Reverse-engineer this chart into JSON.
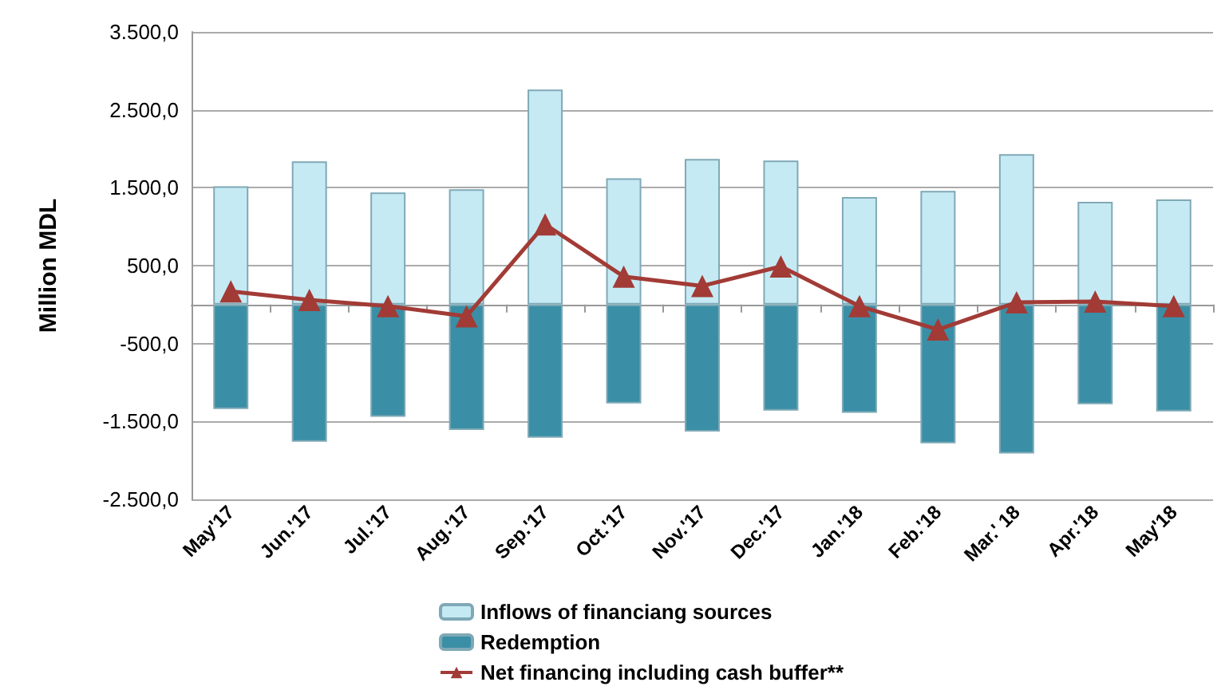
{
  "chart_data": {
    "type": "bar",
    "ylabel": "Million MDL",
    "categories": [
      "May'17",
      "Jun.'17",
      "Jul.'17",
      "Aug.'17",
      "Sep.'17",
      "Oct.'17",
      "Nov.'17",
      "Dec.'17",
      "Jan.'18",
      "Feb.'18",
      "Mar.' 18",
      "Apr.'18",
      "May'18"
    ],
    "series": [
      {
        "name": "Inflows of financiang sources",
        "color": "#c6eaf4",
        "values": [
          1520,
          1840,
          1440,
          1480,
          2760,
          1620,
          1870,
          1850,
          1380,
          1460,
          1930,
          1320,
          1350
        ]
      },
      {
        "name": "Redemption",
        "color": "#3a8fa6",
        "values": [
          -1340,
          -1760,
          -1440,
          -1610,
          -1710,
          -1270,
          -1630,
          -1360,
          -1390,
          -1780,
          -1910,
          -1280,
          -1370
        ]
      },
      {
        "name": "Net financing including cash buffer**",
        "type": "line",
        "color": "#a23b36",
        "marker": "triangle",
        "values": [
          170,
          60,
          -20,
          -150,
          1030,
          360,
          240,
          490,
          -20,
          -320,
          30,
          40,
          -20
        ]
      }
    ],
    "ylim": [
      -2500,
      3500
    ],
    "yticks": [
      {
        "value": -2500,
        "label": "-2.500,0"
      },
      {
        "value": -1500,
        "label": "-1.500,0"
      },
      {
        "value": -500,
        "label": "-500,0"
      },
      {
        "value": 500,
        "label": "500,0"
      },
      {
        "value": 1500,
        "label": "1.500,0"
      },
      {
        "value": 2500,
        "label": "2.500,0"
      },
      {
        "value": 3500,
        "label": "3.500,0"
      }
    ],
    "grid": "y",
    "legend": "bottom",
    "stacked": true
  }
}
